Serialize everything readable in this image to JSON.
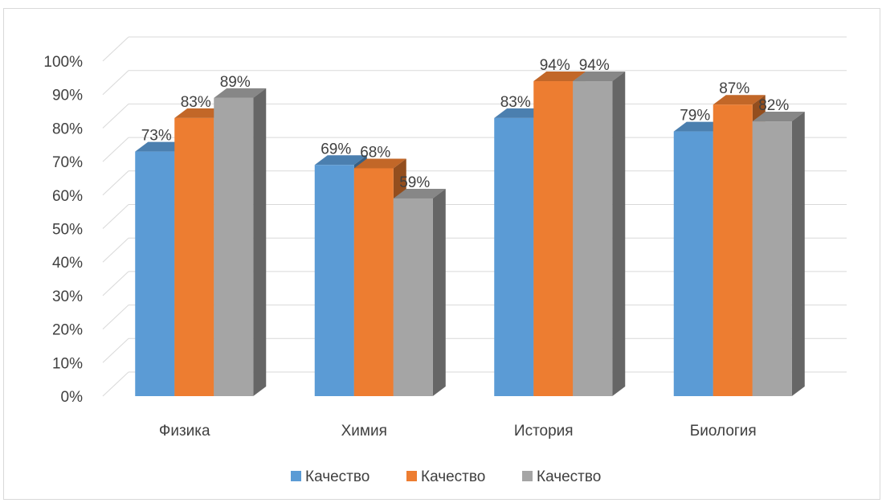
{
  "chart_data": {
    "type": "bar",
    "style": "3d-clustered-column",
    "categories": [
      "Физика",
      "Химия",
      "История",
      "Биология"
    ],
    "series": [
      {
        "name": "Качество",
        "color": "#5b9bd5",
        "values": [
          73,
          69,
          83,
          79
        ]
      },
      {
        "name": "Качество",
        "color": "#ed7d31",
        "values": [
          83,
          68,
          94,
          87
        ]
      },
      {
        "name": "Качество",
        "color": "#a5a5a5",
        "values": [
          89,
          59,
          94,
          82
        ]
      }
    ],
    "yticks": [
      "0%",
      "10%",
      "20%",
      "30%",
      "40%",
      "50%",
      "60%",
      "70%",
      "80%",
      "90%",
      "100%"
    ],
    "ylim": [
      0,
      100
    ],
    "value_format": "percent",
    "grid": true,
    "legend_position": "bottom",
    "title": "",
    "xlabel": "",
    "ylabel": ""
  }
}
